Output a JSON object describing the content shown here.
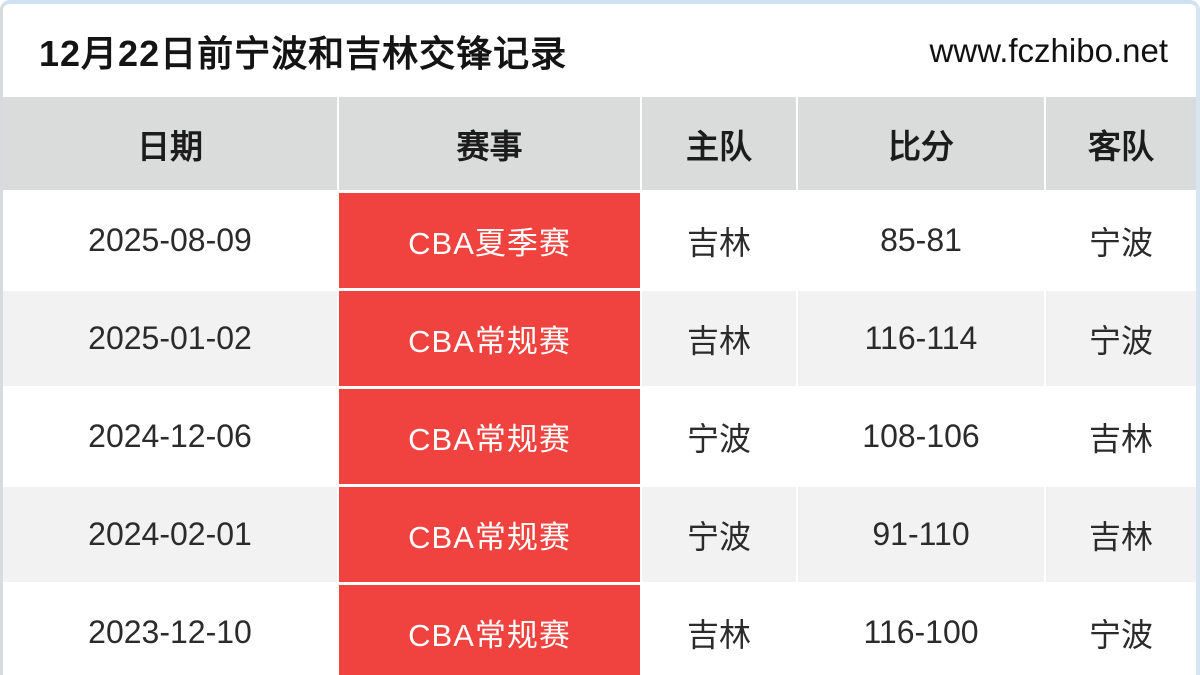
{
  "page": {
    "title": "12月22日前宁波和吉林交锋记录",
    "site_url": "www.fczhibo.net"
  },
  "colors": {
    "event_badge": "#f0423e",
    "header_bg": "#dadcdb",
    "row_alt_bg": "#f2f2f2",
    "top_border": "#cfe0ef",
    "left_border": "#d9dadb",
    "right_border": "#d7e5f2"
  },
  "table": {
    "headers": [
      "日期",
      "赛事",
      "主队",
      "比分",
      "客队"
    ],
    "rows": [
      {
        "date": "2025-08-09",
        "event": "CBA夏季赛",
        "home": "吉林",
        "score": "85-81",
        "away": "宁波"
      },
      {
        "date": "2025-01-02",
        "event": "CBA常规赛",
        "home": "吉林",
        "score": "116-114",
        "away": "宁波"
      },
      {
        "date": "2024-12-06",
        "event": "CBA常规赛",
        "home": "宁波",
        "score": "108-106",
        "away": "吉林"
      },
      {
        "date": "2024-02-01",
        "event": "CBA常规赛",
        "home": "宁波",
        "score": "91-110",
        "away": "吉林"
      },
      {
        "date": "2023-12-10",
        "event": "CBA常规赛",
        "home": "吉林",
        "score": "116-100",
        "away": "宁波"
      }
    ]
  },
  "chart_data": {
    "type": "table",
    "title": "12月22日前宁波和吉林交锋记录",
    "columns": [
      "日期",
      "赛事",
      "主队",
      "比分",
      "客队"
    ],
    "records": [
      [
        "2025-08-09",
        "CBA夏季赛",
        "吉林",
        "85-81",
        "宁波"
      ],
      [
        "2025-01-02",
        "CBA常规赛",
        "吉林",
        "116-114",
        "宁波"
      ],
      [
        "2024-12-06",
        "CBA常规赛",
        "宁波",
        "108-106",
        "吉林"
      ],
      [
        "2024-02-01",
        "CBA常规赛",
        "宁波",
        "91-110",
        "吉林"
      ],
      [
        "2023-12-10",
        "CBA常规赛",
        "吉林",
        "116-100",
        "宁波"
      ]
    ]
  }
}
